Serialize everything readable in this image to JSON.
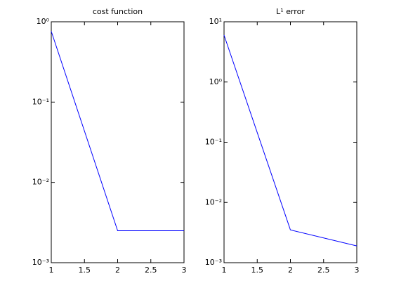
{
  "chart_data": [
    {
      "type": "line",
      "title": "cost function",
      "x": [
        1,
        2,
        3
      ],
      "values": [
        0.76,
        0.0025,
        0.0025
      ],
      "color": "#0000ff",
      "xlim": [
        1,
        3
      ],
      "xticks": [
        1,
        1.5,
        2,
        2.5,
        3
      ],
      "log_y": true,
      "ylim": [
        0.001,
        1
      ],
      "yticks": [
        {
          "value": 0.001,
          "label": "10⁻³"
        },
        {
          "value": 0.01,
          "label": "10⁻²"
        },
        {
          "value": 0.1,
          "label": "10⁻¹"
        },
        {
          "value": 1,
          "label": "10⁰"
        }
      ],
      "grid": false
    },
    {
      "type": "line",
      "title": "L¹ error",
      "x": [
        1,
        2,
        3
      ],
      "values": [
        6.0,
        0.0035,
        0.0019
      ],
      "color": "#0000ff",
      "xlim": [
        1,
        3
      ],
      "xticks": [
        1,
        1.5,
        2,
        2.5,
        3
      ],
      "log_y": true,
      "ylim": [
        0.001,
        10
      ],
      "yticks": [
        {
          "value": 0.001,
          "label": "10⁻³"
        },
        {
          "value": 0.01,
          "label": "10⁻²"
        },
        {
          "value": 0.1,
          "label": "10⁻¹"
        },
        {
          "value": 1,
          "label": "10⁰"
        },
        {
          "value": 10,
          "label": "10¹"
        }
      ],
      "grid": false
    }
  ]
}
